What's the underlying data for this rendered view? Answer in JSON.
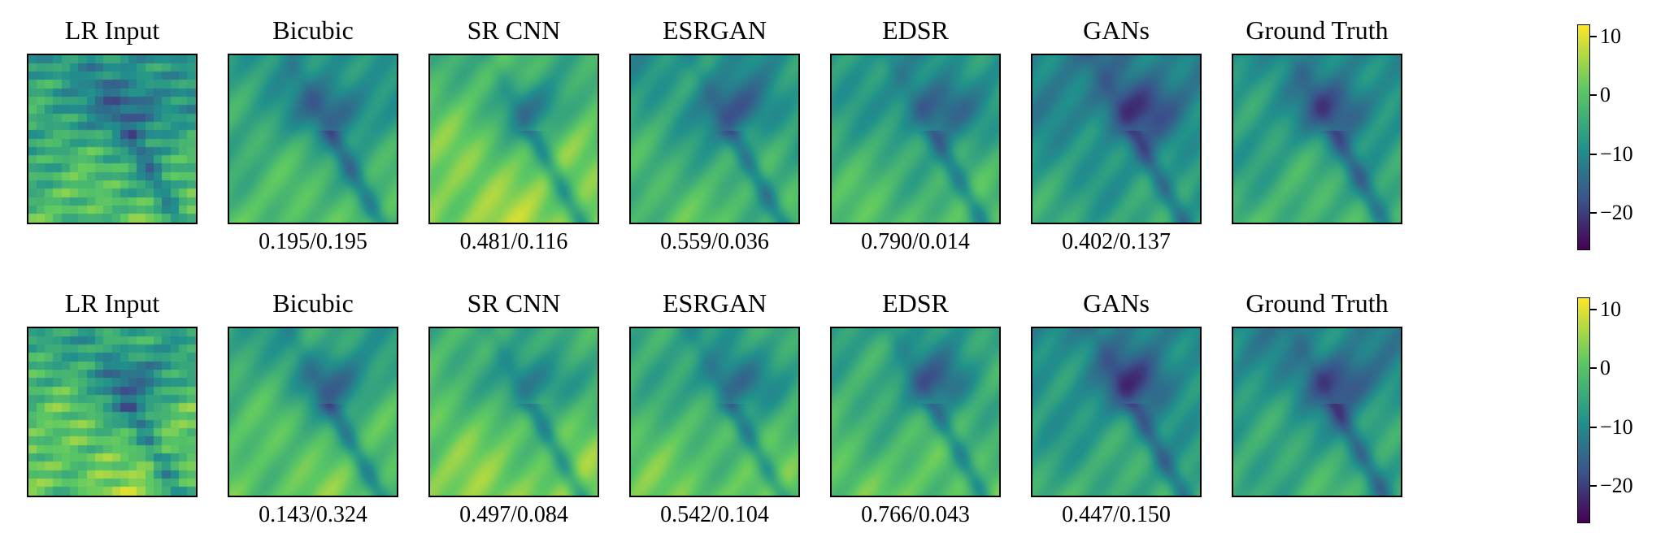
{
  "figure": {
    "rows": [
      {
        "panels": [
          {
            "title": "LR Input",
            "metric": "",
            "seed": 11,
            "pixelated": true,
            "bias": 0.05
          },
          {
            "title": "Bicubic",
            "metric": "0.195/0.195",
            "seed": 11,
            "pixelated": false,
            "bias": 0.05
          },
          {
            "title": "SR CNN",
            "metric": "0.481/0.116",
            "seed": 13,
            "pixelated": false,
            "bias": 0.18
          },
          {
            "title": "ESRGAN",
            "metric": "0.559/0.036",
            "seed": 17,
            "pixelated": false,
            "bias": 0.04
          },
          {
            "title": "EDSR",
            "metric": "0.790/0.014",
            "seed": 19,
            "pixelated": false,
            "bias": 0.04
          },
          {
            "title": "GANs",
            "metric": "0.402/0.137",
            "seed": 23,
            "pixelated": false,
            "bias": -0.06
          },
          {
            "title": "Ground Truth",
            "metric": "",
            "seed": 29,
            "pixelated": false,
            "bias": 0.0
          }
        ]
      },
      {
        "panels": [
          {
            "title": "LR Input",
            "metric": "",
            "seed": 31,
            "pixelated": true,
            "bias": 0.12
          },
          {
            "title": "Bicubic",
            "metric": "0.143/0.324",
            "seed": 31,
            "pixelated": false,
            "bias": 0.1
          },
          {
            "title": "SR CNN",
            "metric": "0.497/0.084",
            "seed": 37,
            "pixelated": false,
            "bias": 0.15
          },
          {
            "title": "ESRGAN",
            "metric": "0.542/0.104",
            "seed": 41,
            "pixelated": false,
            "bias": 0.1
          },
          {
            "title": "EDSR",
            "metric": "0.766/0.043",
            "seed": 43,
            "pixelated": false,
            "bias": 0.08
          },
          {
            "title": "GANs",
            "metric": "0.447/0.150",
            "seed": 47,
            "pixelated": false,
            "bias": -0.03
          },
          {
            "title": "Ground Truth",
            "metric": "",
            "seed": 53,
            "pixelated": false,
            "bias": -0.02
          }
        ]
      }
    ],
    "colorbar": {
      "colormap": "viridis",
      "min": -26,
      "max": 12,
      "ticks": [
        {
          "value": 10,
          "label": "10"
        },
        {
          "value": 0,
          "label": "0"
        },
        {
          "value": -10,
          "label": "−10"
        },
        {
          "value": -20,
          "label": "−20"
        }
      ]
    }
  }
}
